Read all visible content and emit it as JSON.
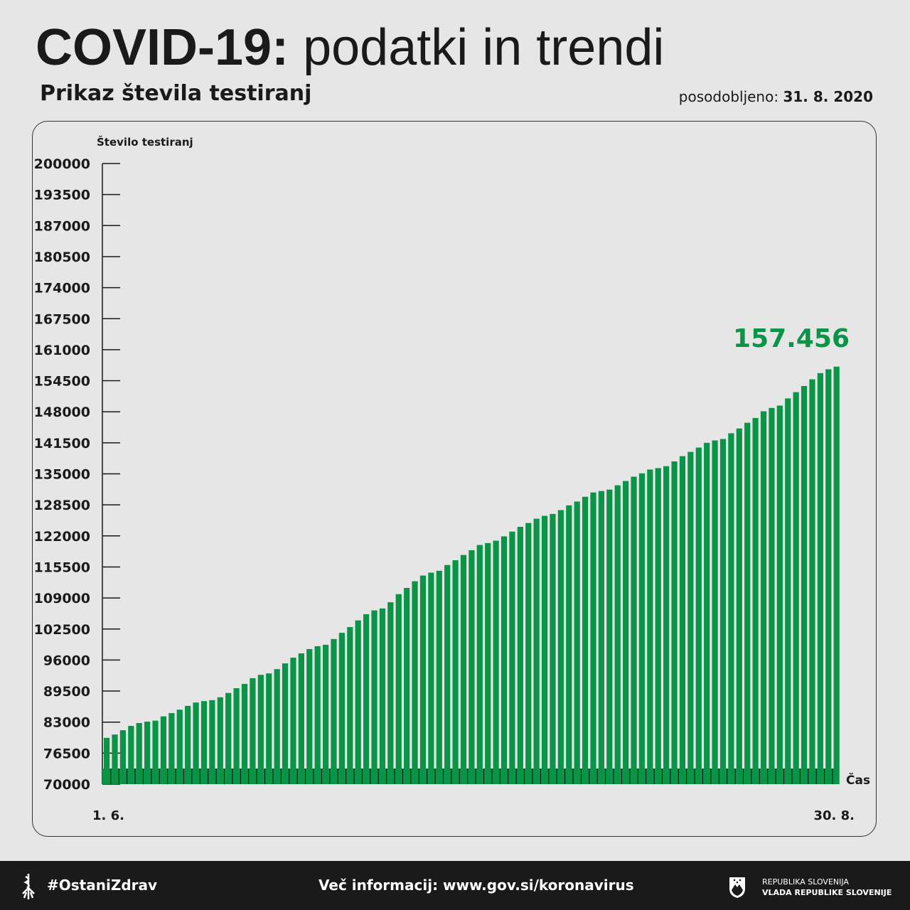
{
  "header": {
    "title_bold": "COVID-19:",
    "title_light": "podatki in trendi",
    "updated_label": "posodobljeno:",
    "updated_date": "31. 8. 2020",
    "subtitle": "Prikaz števila testiranj"
  },
  "chart_data": {
    "type": "bar",
    "title": "Prikaz števila testiranj",
    "ylabel": "Število testiranj",
    "xlabel": "Čas",
    "ylim": [
      70000,
      200000
    ],
    "yticks": [
      "200000",
      "193500",
      "187000",
      "180500",
      "174000",
      "167500",
      "161000",
      "154500",
      "148000",
      "141500",
      "135000",
      "128500",
      "122000",
      "115500",
      "109000",
      "102500",
      "96000",
      "89500",
      "83000",
      "76500",
      "70000"
    ],
    "x_start_label": "1. 6.",
    "x_end_label": "30. 8.",
    "last_value_label": "157.456",
    "color": "#0a9447",
    "values": [
      79700,
      80400,
      81300,
      82200,
      82800,
      83100,
      83300,
      84200,
      84900,
      85600,
      86400,
      87100,
      87400,
      87600,
      88200,
      89100,
      90100,
      91000,
      92200,
      92900,
      93200,
      94100,
      95300,
      96500,
      97400,
      98300,
      98900,
      99200,
      100400,
      101700,
      102900,
      104300,
      105600,
      106400,
      106800,
      108100,
      109800,
      111100,
      112500,
      113700,
      114300,
      114700,
      115900,
      116900,
      118000,
      119000,
      120100,
      120500,
      121000,
      121900,
      122900,
      123900,
      124700,
      125600,
      126200,
      126600,
      127400,
      128400,
      129200,
      130200,
      131100,
      131400,
      131700,
      132600,
      133500,
      134400,
      135100,
      135900,
      136200,
      136600,
      137600,
      138700,
      139600,
      140500,
      141500,
      142000,
      142300,
      143500,
      144500,
      145700,
      146700,
      148100,
      148800,
      149300,
      150800,
      152100,
      153400,
      154800,
      156100,
      156900,
      157456
    ]
  },
  "footer": {
    "hashtag": "#OstaniZdrav",
    "more_info": "Več informacij: www.gov.si/koronavirus",
    "gov_line1": "REPUBLIKA SLOVENIJA",
    "gov_line2": "VLADA REPUBLIKE SLOVENIJE"
  }
}
